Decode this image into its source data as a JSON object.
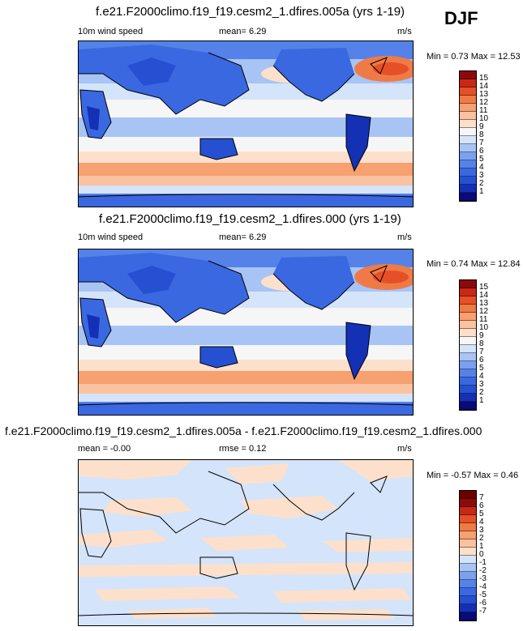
{
  "season": "DJF",
  "panels": [
    {
      "title": "f.e21.F2000climo.f19_f19.cesm2_1.dfires.005a (yrs 1-19)",
      "left_label": "10m wind speed",
      "mid_label": "mean=   6.29",
      "units": "m/s",
      "minmax": "Min =  0.73 Max =  12.53",
      "colorbar_ticks": [
        "15",
        "14",
        "13",
        "12",
        "11",
        "10",
        "9",
        "8",
        "7",
        "6",
        "5",
        "4",
        "3",
        "2",
        "1"
      ]
    },
    {
      "title": "f.e21.F2000climo.f19_f19.cesm2_1.dfires.000 (yrs 1-19)",
      "left_label": "10m wind speed",
      "mid_label": "mean=   6.29",
      "units": "m/s",
      "minmax": "Min =  0.74 Max =  12.84",
      "colorbar_ticks": [
        "15",
        "14",
        "13",
        "12",
        "11",
        "10",
        "9",
        "8",
        "7",
        "6",
        "5",
        "4",
        "3",
        "2",
        "1"
      ]
    },
    {
      "title": "f.e21.F2000climo.f19_f19.cesm2_1.dfires.005a - f.e21.F2000climo.f19_f19.cesm2_1.dfires.000",
      "left_label": "mean = -0.00",
      "mid_label": "rmse =  0.12",
      "units": "m/s",
      "minmax": "Min = -0.57 Max =  0.46",
      "colorbar_ticks": [
        "7",
        "6",
        "5",
        "4",
        "3",
        "2",
        "1",
        "0",
        "-1",
        "-2",
        "-3",
        "-4",
        "-5",
        "-6",
        "-7"
      ]
    }
  ],
  "colors": {
    "abs_scale": [
      "#0a0a7a",
      "#1430b4",
      "#2650d2",
      "#3a68e0",
      "#5582e8",
      "#7aa0ef",
      "#a8c4f5",
      "#d4e4fa",
      "#f6f6f6",
      "#fde0cc",
      "#fbc2a0",
      "#f7a070",
      "#f07a46",
      "#e65028",
      "#c82814",
      "#8c0a0a"
    ],
    "diff_scale": [
      "#0a0a7a",
      "#1430b4",
      "#2650d2",
      "#3a68e0",
      "#5582e8",
      "#7aa0ef",
      "#a8c4f5",
      "#d4e4fa",
      "#fde0cc",
      "#fbc2a0",
      "#f7a070",
      "#f07a46",
      "#e65028",
      "#c82814",
      "#8c0a0a",
      "#6a0000"
    ]
  }
}
